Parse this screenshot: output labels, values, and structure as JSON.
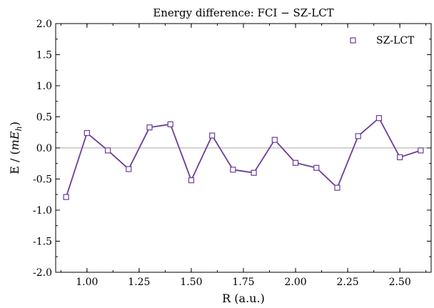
{
  "chart_data": {
    "type": "line",
    "title": "Energy difference: FCI − SZ-LCT",
    "xlabel": "R (a.u.)",
    "ylabel_prefix": "E / (",
    "ylabel_math": "mE",
    "ylabel_sub": "h",
    "ylabel_suffix": ")",
    "xlim": [
      0.85,
      2.65
    ],
    "ylim": [
      -2.0,
      2.0
    ],
    "x_ticks": [
      1.0,
      1.25,
      1.5,
      1.75,
      2.0,
      2.25,
      2.5
    ],
    "x_tick_labels": [
      "1.00",
      "1.25",
      "1.50",
      "1.75",
      "2.00",
      "2.25",
      "2.50"
    ],
    "y_ticks": [
      -2.0,
      -1.5,
      -1.0,
      -0.5,
      0.0,
      0.5,
      1.0,
      1.5,
      2.0
    ],
    "y_tick_labels": [
      "-2.0",
      "-1.5",
      "-1.0",
      "-0.5",
      "0.0",
      "0.5",
      "1.0",
      "1.5",
      "2.0"
    ],
    "zero_line": true,
    "grid": false,
    "legend_position": "top-right",
    "series": [
      {
        "name": "SZ-LCT",
        "color": "#6a3d9a",
        "marker": "square-open",
        "x": [
          0.9,
          1.0,
          1.1,
          1.2,
          1.3,
          1.4,
          1.5,
          1.6,
          1.7,
          1.8,
          1.9,
          2.0,
          2.1,
          2.2,
          2.3,
          2.4,
          2.5,
          2.6
        ],
        "y": [
          -0.79,
          0.24,
          -0.04,
          -0.34,
          0.33,
          0.38,
          -0.52,
          0.2,
          -0.35,
          -0.4,
          0.13,
          -0.24,
          -0.32,
          -0.64,
          0.19,
          0.48,
          -0.15,
          -0.04
        ]
      }
    ]
  }
}
